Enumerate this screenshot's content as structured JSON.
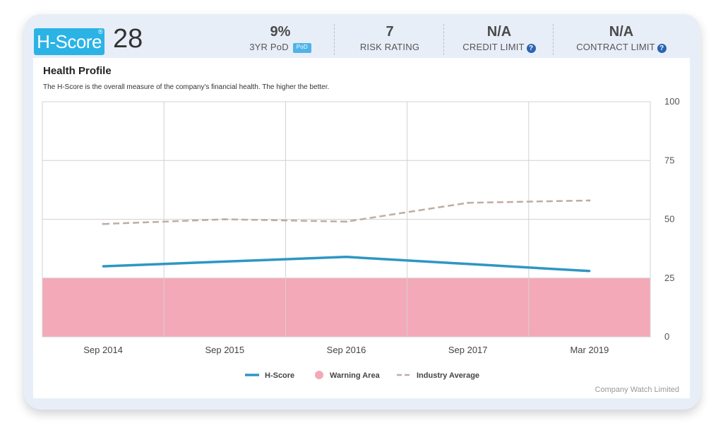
{
  "header": {
    "logo_text": "H-Score",
    "logo_reg": "®",
    "hscore_value": "28",
    "stats": [
      {
        "value": "9%",
        "label": "3YR PoD",
        "icon": "pod-icon",
        "icon_text": "PoD"
      },
      {
        "value": "7",
        "label": "RISK RATING"
      },
      {
        "value": "N/A",
        "label": "CREDIT LIMIT",
        "icon": "help-icon",
        "icon_text": "?"
      },
      {
        "value": "N/A",
        "label": "CONTRACT LIMIT",
        "icon": "help-icon",
        "icon_text": "?"
      }
    ]
  },
  "panel": {
    "title": "Health Profile",
    "description": "The H-Score is the overall measure of the company's financial health. The higher the better.",
    "source": "Company Watch Limited"
  },
  "chart_data": {
    "type": "line",
    "categories": [
      "Sep 2014",
      "Sep 2015",
      "Sep 2016",
      "Sep 2017",
      "Mar 2019"
    ],
    "ylim": [
      0,
      100
    ],
    "yticks": [
      "0",
      "25",
      "50",
      "75",
      "100"
    ],
    "y_axis_position": "right",
    "grid": true,
    "series": [
      {
        "name": "H-Score",
        "values": [
          30,
          32,
          34,
          31,
          28
        ],
        "color": "#2e96c4",
        "style": "solid"
      },
      {
        "name": "Industry Average",
        "values": [
          48,
          50,
          49,
          57,
          58
        ],
        "color": "#bfaca3",
        "style": "dashed"
      }
    ],
    "bands": [
      {
        "name": "Warning Area",
        "from": 0,
        "to": 25,
        "color": "#f4a9b8"
      }
    ],
    "legend": {
      "position": "bottom-center",
      "items": [
        {
          "label": "H-Score",
          "marker": "line",
          "color": "#2e96c4"
        },
        {
          "label": "Warning Area",
          "marker": "circle",
          "color": "#f4a9b8"
        },
        {
          "label": "Industry Average",
          "marker": "dashed-line",
          "color": "#bfaca3"
        }
      ]
    }
  }
}
